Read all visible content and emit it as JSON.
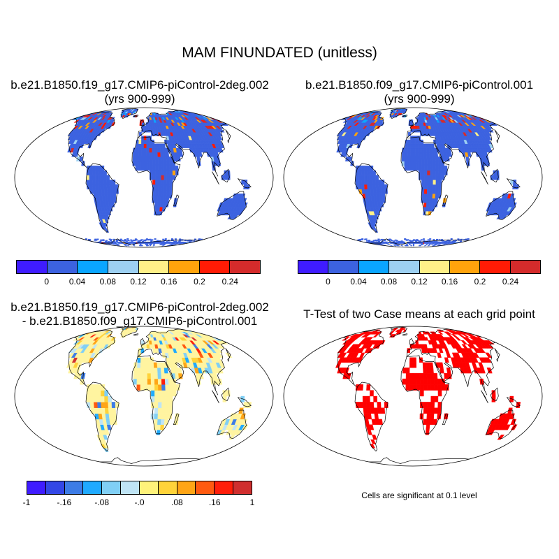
{
  "figure": {
    "title": "MAM FINUNDATED (unitless)"
  },
  "panels": {
    "case1": {
      "title_line1": "b.e21.B1850.f19_g17.CMIP6-piControl-2deg.002",
      "title_line2": "(yrs 900-999)"
    },
    "case2": {
      "title_line1": "b.e21.B1850.f09_g17.CMIP6-piControl.001",
      "title_line2": "(yrs 900-999)"
    },
    "diff": {
      "title_line1": "b.e21.B1850.f19_g17.CMIP6-piControl-2deg.002",
      "title_line2": "- b.e21.B1850.f09_g17.CMIP6-piControl.001"
    },
    "ttest": {
      "title": "T-Test of two Case means at each grid point",
      "note": "Cells are significant at 0.1 level"
    }
  },
  "colorbars": {
    "top": {
      "colors": [
        "#3f1cff",
        "#3c62e0",
        "#0aa5ff",
        "#9dd0f2",
        "#fff088",
        "#ffa30c",
        "#ff1b05",
        "#d42b2b"
      ],
      "labels": [
        "0",
        "0.04",
        "0.08",
        "0.12",
        "0.16",
        "0.2",
        "0.24"
      ]
    },
    "diff": {
      "colors": [
        "#3f1cff",
        "#3347e6",
        "#3d7ce6",
        "#20aaff",
        "#80cff5",
        "#bfe4f5",
        "#fff27a",
        "#ffd33a",
        "#ffa516",
        "#ff5a10",
        "#ff1e0a",
        "#d02f2f"
      ],
      "labels": [
        "-1",
        "-.16",
        "-.08",
        "-.0",
        ".08",
        ".16",
        "1"
      ]
    }
  },
  "map_colors": {
    "land_case": "#3c62e0",
    "land_diff": "#fff4a0",
    "signif": "#ff0000",
    "outline": "#000000"
  }
}
